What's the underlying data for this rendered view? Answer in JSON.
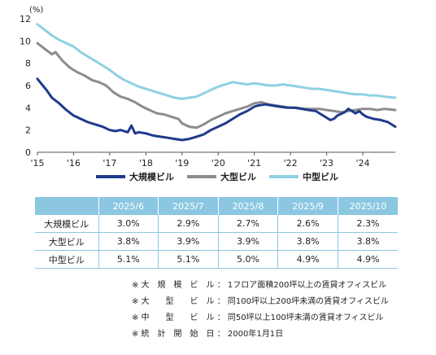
{
  "chart_data": {
    "type": "line",
    "unit_label": "(%)",
    "y_ticks": [
      "0",
      "2",
      "4",
      "6",
      "8",
      "10",
      "12"
    ],
    "ylim": [
      0,
      12
    ],
    "x_ticks": [
      "'15",
      "'16",
      "'17",
      "'18",
      "'19",
      "'20",
      "'21",
      "'22",
      "'23",
      "'24"
    ],
    "xlim": [
      2015,
      2024.9
    ],
    "series": [
      {
        "name": "大規模ビル",
        "color": "#1f3a8c",
        "x": [
          2015.0,
          2015.1,
          2015.25,
          2015.4,
          2015.6,
          2015.8,
          2016.0,
          2016.2,
          2016.4,
          2016.6,
          2016.8,
          2017.0,
          2017.15,
          2017.3,
          2017.5,
          2017.6,
          2017.7,
          2017.8,
          2018.0,
          2018.2,
          2018.4,
          2018.6,
          2018.8,
          2019.0,
          2019.2,
          2019.4,
          2019.6,
          2019.8,
          2020.0,
          2020.2,
          2020.4,
          2020.6,
          2020.8,
          2021.0,
          2021.1,
          2021.3,
          2021.5,
          2021.7,
          2021.9,
          2022.1,
          2022.3,
          2022.5,
          2022.7,
          2022.9,
          2023.0,
          2023.1,
          2023.2,
          2023.3,
          2023.5,
          2023.6,
          2023.7,
          2023.8,
          2023.9,
          2024.0,
          2024.1,
          2024.3,
          2024.5,
          2024.7,
          2024.9
        ],
        "values": [
          6.6,
          6.2,
          5.6,
          4.9,
          4.4,
          3.8,
          3.3,
          3.0,
          2.7,
          2.5,
          2.3,
          2.0,
          1.9,
          2.0,
          1.8,
          2.4,
          1.7,
          1.8,
          1.7,
          1.5,
          1.4,
          1.3,
          1.2,
          1.1,
          1.2,
          1.4,
          1.6,
          2.0,
          2.3,
          2.6,
          3.0,
          3.4,
          3.7,
          4.1,
          4.2,
          4.3,
          4.2,
          4.1,
          4.0,
          4.0,
          3.9,
          3.8,
          3.7,
          3.3,
          3.1,
          2.9,
          3.0,
          3.3,
          3.6,
          3.9,
          3.7,
          3.5,
          3.7,
          3.4,
          3.2,
          3.0,
          2.9,
          2.7,
          2.3
        ]
      },
      {
        "name": "大型ビル",
        "color": "#8c8c8c",
        "x": [
          2015.0,
          2015.2,
          2015.4,
          2015.5,
          2015.7,
          2015.9,
          2016.1,
          2016.3,
          2016.5,
          2016.7,
          2016.9,
          2017.1,
          2017.3,
          2017.5,
          2017.7,
          2017.9,
          2018.1,
          2018.3,
          2018.5,
          2018.7,
          2018.9,
          2019.0,
          2019.2,
          2019.4,
          2019.6,
          2019.8,
          2020.0,
          2020.2,
          2020.4,
          2020.6,
          2020.8,
          2021.0,
          2021.2,
          2021.4,
          2021.6,
          2021.8,
          2022.0,
          2022.2,
          2022.4,
          2022.6,
          2022.8,
          2023.0,
          2023.2,
          2023.4,
          2023.6,
          2023.8,
          2024.0,
          2024.2,
          2024.4,
          2024.6,
          2024.9
        ],
        "values": [
          9.8,
          9.3,
          8.8,
          9.0,
          8.2,
          7.6,
          7.2,
          6.9,
          6.5,
          6.3,
          6.0,
          5.4,
          5.0,
          4.8,
          4.5,
          4.1,
          3.8,
          3.5,
          3.4,
          3.2,
          3.0,
          2.6,
          2.3,
          2.2,
          2.5,
          2.9,
          3.2,
          3.5,
          3.7,
          3.9,
          4.1,
          4.4,
          4.5,
          4.3,
          4.2,
          4.1,
          4.0,
          4.0,
          3.9,
          3.9,
          3.9,
          3.8,
          3.7,
          3.6,
          3.7,
          3.8,
          3.9,
          3.9,
          3.8,
          3.9,
          3.8
        ]
      },
      {
        "name": "中型ビル",
        "color": "#8fd0e4",
        "x": [
          2015.0,
          2015.2,
          2015.4,
          2015.6,
          2015.8,
          2016.0,
          2016.2,
          2016.4,
          2016.6,
          2016.8,
          2017.0,
          2017.2,
          2017.4,
          2017.6,
          2017.8,
          2018.0,
          2018.2,
          2018.4,
          2018.6,
          2018.8,
          2019.0,
          2019.2,
          2019.4,
          2019.6,
          2019.8,
          2020.0,
          2020.2,
          2020.4,
          2020.6,
          2020.8,
          2021.0,
          2021.2,
          2021.4,
          2021.6,
          2021.8,
          2022.0,
          2022.2,
          2022.4,
          2022.6,
          2022.8,
          2023.0,
          2023.2,
          2023.4,
          2023.6,
          2023.8,
          2024.0,
          2024.2,
          2024.4,
          2024.6,
          2024.9
        ],
        "values": [
          11.5,
          11.0,
          10.5,
          10.1,
          9.8,
          9.5,
          9.0,
          8.6,
          8.2,
          7.8,
          7.4,
          6.9,
          6.5,
          6.2,
          5.9,
          5.7,
          5.5,
          5.3,
          5.1,
          4.9,
          4.8,
          4.9,
          5.0,
          5.3,
          5.6,
          5.9,
          6.1,
          6.3,
          6.2,
          6.1,
          6.2,
          6.1,
          6.0,
          6.0,
          6.1,
          6.0,
          5.9,
          5.8,
          5.7,
          5.7,
          5.6,
          5.5,
          5.4,
          5.3,
          5.2,
          5.2,
          5.1,
          5.1,
          5.0,
          4.9
        ]
      }
    ],
    "legend_placement": "bottom"
  },
  "table": {
    "headers": [
      "",
      "2025/6",
      "2025/7",
      "2025/8",
      "2025/9",
      "2025/10"
    ],
    "rows": [
      {
        "label": "大規模ビル",
        "cells": [
          "3.0%",
          "2.9%",
          "2.7%",
          "2.6%",
          "2.3%"
        ]
      },
      {
        "label": "大型ビル",
        "cells": [
          "3.8%",
          "3.9%",
          "3.9%",
          "3.8%",
          "3.8%"
        ]
      },
      {
        "label": "中型ビル",
        "cells": [
          "5.1%",
          "5.1%",
          "5.0%",
          "4.9%",
          "4.9%"
        ]
      }
    ]
  },
  "notes": [
    "※ 大　規　模　ビ　ル ： 1フロア面積200坪以上の賃貸オフィスビル",
    "※ 大　　型　　ビ　ル ： 同100坪以上200坪未満の賃貸オフィスビル",
    "※ 中　　型　　ビ　ル ： 同50坪以上100坪未満の賃貸オフィスビル",
    "※ 統　計　開　始　日 ： 2000年1月1日"
  ]
}
